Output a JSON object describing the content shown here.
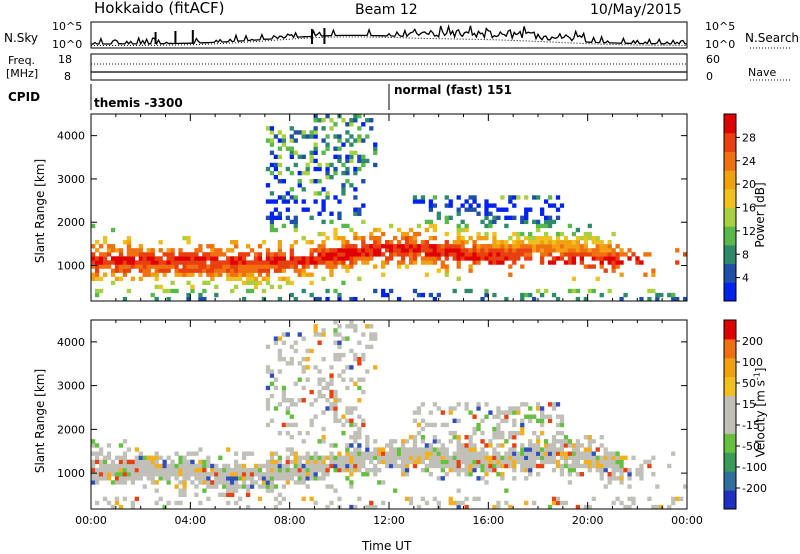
{
  "header": {
    "station": "Hokkaido (fitACF)",
    "beam": "Beam 12",
    "date": "10/May/2015"
  },
  "noise_panel": {
    "left_label": "N.Sky",
    "left_ticks": [
      "10^5",
      "10^0"
    ],
    "right_ticks": [
      "10^5",
      "10^0"
    ],
    "right_label": "N.Search",
    "right_legend_line": "dotted"
  },
  "freq_panel": {
    "left_label": "Freq.",
    "left_unit": "[MHz]",
    "left_ticks": [
      "18",
      "8"
    ],
    "right_ticks": [
      "60",
      "0"
    ],
    "right_label": "Nave",
    "right_legend_line": "dotted"
  },
  "cpid_panel": {
    "label": "CPID",
    "modes": [
      {
        "text": "themis -3300",
        "start_hour": 0.0
      },
      {
        "text": "normal (fast) 151",
        "start_hour": 12.0
      }
    ]
  },
  "chart_data": [
    {
      "type": "heatmap",
      "name": "power",
      "xlabel": "",
      "ylabel": "Slant Range [km]",
      "xlim": [
        0,
        24
      ],
      "ylim": [
        180,
        4500
      ],
      "yticks": [
        1000,
        2000,
        3000,
        4000
      ],
      "colorbar": {
        "label": "Power [dB]",
        "ticks": [
          "4",
          "8",
          "12",
          "16",
          "20",
          "24",
          "28"
        ],
        "colors": [
          "#0022ee",
          "#1f4fa8",
          "#2e8a6b",
          "#58b84a",
          "#a8d040",
          "#f0c020",
          "#f0a010",
          "#f07010",
          "#e84010",
          "#e00000"
        ]
      }
    },
    {
      "type": "heatmap",
      "name": "velocity",
      "xlabel": "Time UT",
      "ylabel": "Slant Range [km]",
      "xlim": [
        0,
        24
      ],
      "ylim": [
        180,
        4500
      ],
      "yticks": [
        1000,
        2000,
        3000,
        4000
      ],
      "xticks": [
        "00:00",
        "04:00",
        "08:00",
        "12:00",
        "16:00",
        "20:00",
        "00:00"
      ],
      "colorbar": {
        "label": "Velocity [m s^-1]",
        "ticks": [
          "200",
          "100",
          "50",
          "15",
          "-15",
          "-50",
          "-100",
          "-200"
        ],
        "colors": [
          "#1f2fbf",
          "#2f6fa0",
          "#3a9a5a",
          "#66c040",
          "#c0c0b8",
          "#c0c0b8",
          "#f0c020",
          "#f0a010",
          "#f07010",
          "#e00000"
        ]
      }
    }
  ]
}
